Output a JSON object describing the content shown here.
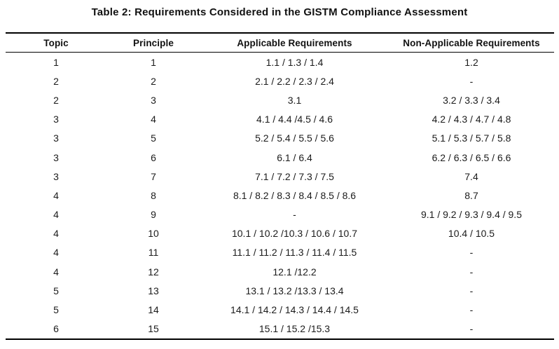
{
  "title": "Table 2: Requirements Considered in the GISTM Compliance Assessment",
  "table": {
    "headers": [
      "Topic",
      "Principle",
      "Applicable Requirements",
      "Non-Applicable Requirements"
    ],
    "rows": [
      [
        "1",
        "1",
        "1.1 / 1.3 / 1.4",
        "1.2"
      ],
      [
        "2",
        "2",
        "2.1 / 2.2 / 2.3 / 2.4",
        "-"
      ],
      [
        "2",
        "3",
        "3.1",
        "3.2 / 3.3 / 3.4"
      ],
      [
        "3",
        "4",
        "4.1 / 4.4 /4.5 / 4.6",
        "4.2 / 4.3 / 4.7 / 4.8"
      ],
      [
        "3",
        "5",
        "5.2 / 5.4 / 5.5 / 5.6",
        "5.1 / 5.3 / 5.7 / 5.8"
      ],
      [
        "3",
        "6",
        "6.1 / 6.4",
        "6.2 / 6.3 / 6.5 / 6.6"
      ],
      [
        "3",
        "7",
        "7.1 / 7.2 / 7.3 / 7.5",
        "7.4"
      ],
      [
        "4",
        "8",
        "8.1 / 8.2 / 8.3 / 8.4 / 8.5 / 8.6",
        "8.7"
      ],
      [
        "4",
        "9",
        "-",
        "9.1 / 9.2 / 9.3 / 9.4 / 9.5"
      ],
      [
        "4",
        "10",
        "10.1 / 10.2 /10.3 / 10.6 / 10.7",
        "10.4 / 10.5"
      ],
      [
        "4",
        "11",
        "11.1 / 11.2 / 11.3 / 11.4 / 11.5",
        "-"
      ],
      [
        "4",
        "12",
        "12.1 /12.2",
        "-"
      ],
      [
        "5",
        "13",
        "13.1 / 13.2 /13.3 / 13.4",
        "-"
      ],
      [
        "5",
        "14",
        "14.1 / 14.2 / 14.3 / 14.4 / 14.5",
        "-"
      ],
      [
        "6",
        "15",
        "15.1 / 15.2 /15.3",
        "-"
      ]
    ]
  },
  "colors": {
    "text": "#1b1b1b",
    "rule": "#000000",
    "background": "#ffffff"
  }
}
